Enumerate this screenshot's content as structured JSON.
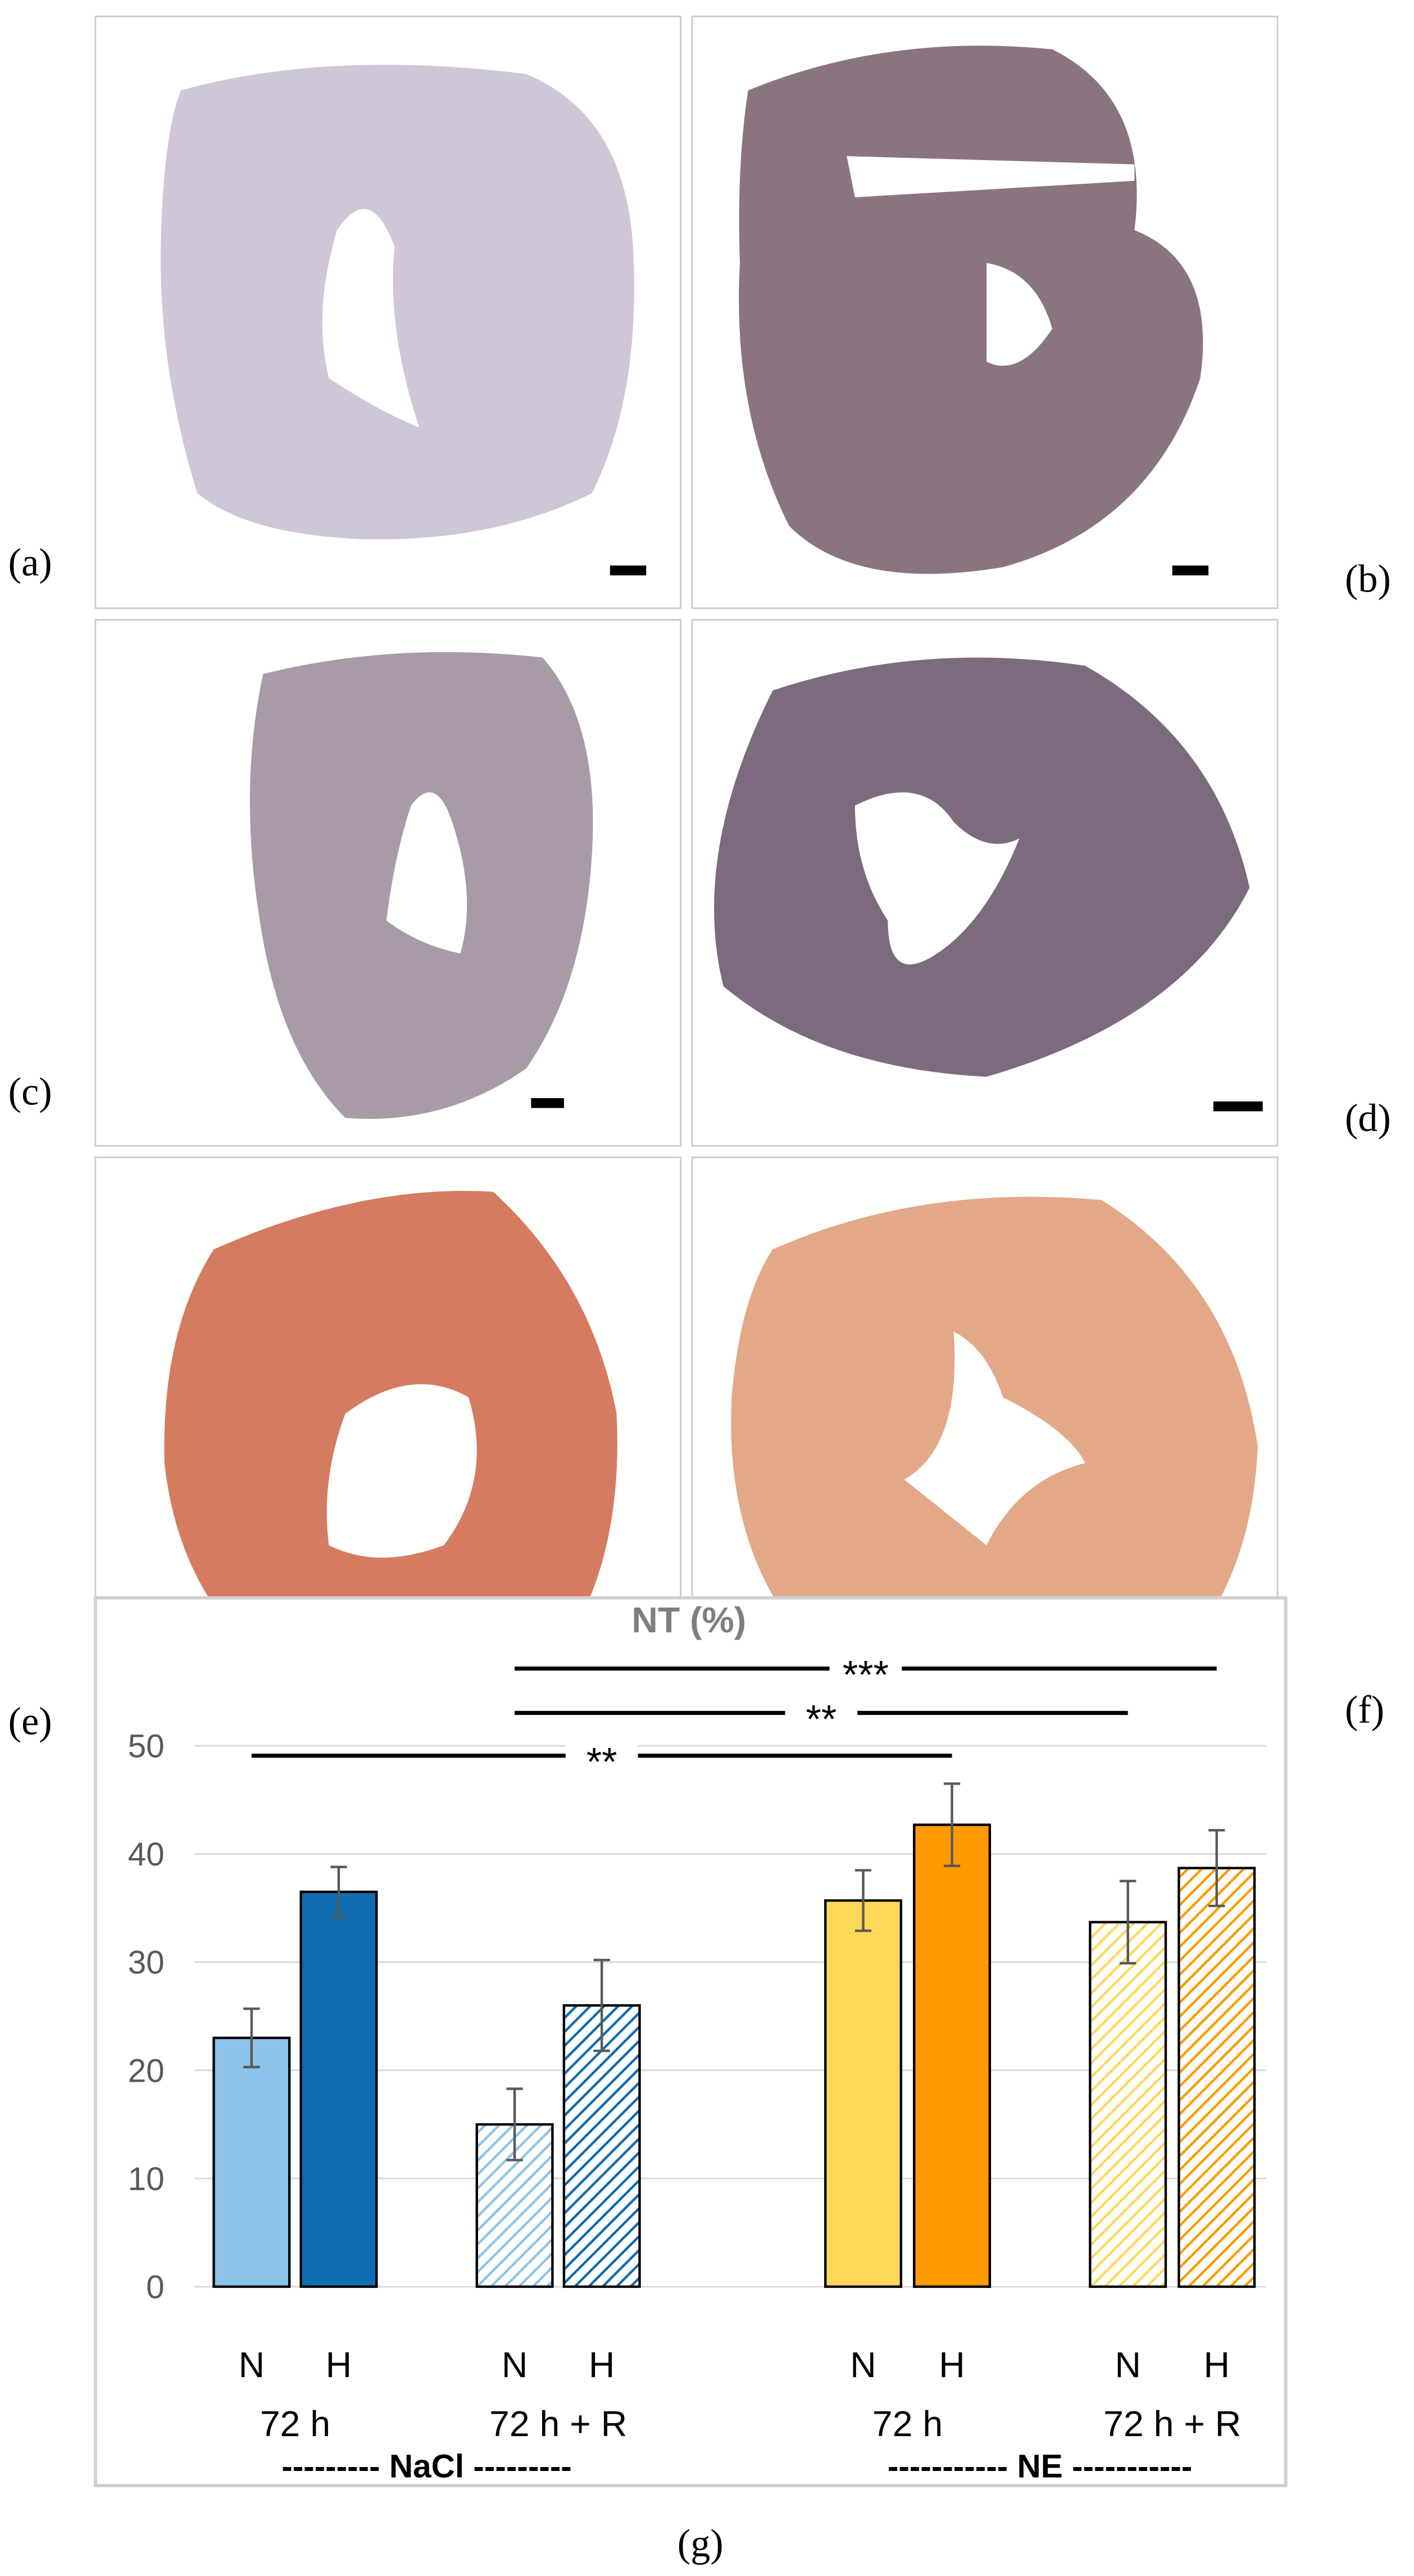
{
  "panels": [
    {
      "label": "(a)"
    },
    {
      "label": "(b)"
    },
    {
      "label": "(c)"
    },
    {
      "label": "(d)"
    },
    {
      "label": "(e)"
    },
    {
      "label": "(f)"
    },
    {
      "label": "(g)"
    }
  ],
  "chart_data": {
    "type": "bar",
    "title": "NT (%)",
    "categories": [
      "N",
      "H",
      "N",
      "H",
      "N",
      "H",
      "N",
      "H"
    ],
    "groups": [
      "72 h",
      "72 h + R",
      "72 h",
      "72 h + R"
    ],
    "treatments": [
      "--------- NaCl ---------",
      "----------- NE -----------"
    ],
    "values": [
      23,
      36.5,
      15,
      26,
      35.7,
      42.7,
      33.7,
      38.7
    ],
    "errors": [
      2.7,
      2.3,
      3.3,
      4.2,
      2.8,
      3.8,
      3.8,
      3.5
    ],
    "colors": [
      "#8dc3e8",
      "#0f6cb0",
      "#8dc3e8",
      "#0f6cb0",
      "#ffd85a",
      "#ff9a00",
      "#ffd85a",
      "#ff9a00"
    ],
    "hatched": [
      false,
      false,
      true,
      true,
      false,
      false,
      true,
      true
    ],
    "ylim": [
      0,
      50
    ],
    "yticks": [
      0,
      10,
      20,
      30,
      40,
      50
    ],
    "grid": true,
    "annotations": [
      {
        "text": "**",
        "from": 0,
        "to": 5
      },
      {
        "text": "**",
        "from": 2,
        "to": 6
      },
      {
        "text": "***",
        "from": 2,
        "to": 7
      }
    ]
  }
}
